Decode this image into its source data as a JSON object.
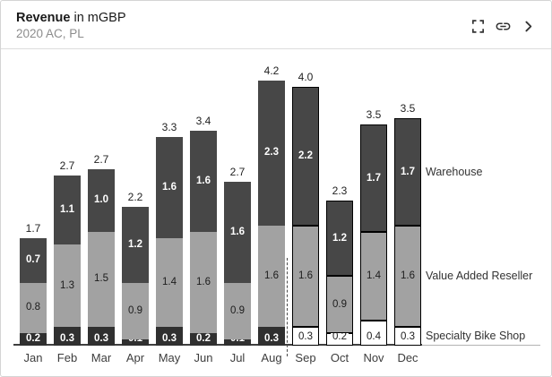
{
  "header": {
    "title_metric": "Revenue",
    "title_unit": "in mGBP",
    "subtitle": "2020 AC, PL",
    "icons": [
      "fullscreen-icon",
      "link-icon",
      "chevron-right-icon"
    ]
  },
  "chart_data": {
    "type": "bar",
    "variant": "stacked-column",
    "title": "Revenue in mGBP",
    "subtitle": "2020 AC, PL",
    "unit": "mGBP",
    "categories": [
      "Jan",
      "Feb",
      "Mar",
      "Apr",
      "May",
      "Jun",
      "Jul",
      "Aug",
      "Sep",
      "Oct",
      "Nov",
      "Dec"
    ],
    "scenario_by_month": [
      "AC",
      "AC",
      "AC",
      "AC",
      "AC",
      "AC",
      "AC",
      "AC",
      "PL",
      "PL",
      "PL",
      "PL"
    ],
    "separator_after": "Aug",
    "series": [
      {
        "name": "Specialty Bike Shop",
        "values": [
          0.2,
          0.3,
          0.3,
          0.1,
          0.3,
          0.2,
          0.1,
          0.3,
          0.3,
          0.2,
          0.4,
          0.3
        ]
      },
      {
        "name": "Value Added Reseller",
        "values": [
          0.8,
          1.3,
          1.5,
          0.9,
          1.4,
          1.6,
          0.9,
          1.6,
          1.6,
          0.9,
          1.4,
          1.6
        ]
      },
      {
        "name": "Warehouse",
        "values": [
          0.7,
          1.1,
          1.0,
          1.2,
          1.6,
          1.6,
          1.6,
          2.3,
          2.2,
          1.2,
          1.7,
          1.7
        ]
      }
    ],
    "totals": [
      "1.7",
      "2.7",
      "2.7",
      "2.2",
      "3.3",
      "3.4",
      "2.7",
      "4.2",
      "4.0",
      "2.3",
      "3.5",
      "3.5"
    ],
    "legend_position": "right",
    "grid": false,
    "ylim": [
      0,
      4.5
    ],
    "colors": {
      "warehouse": "#474747",
      "value_added_reseller": "#a2a2a2",
      "specialty_bike_shop": "#303030",
      "plan_fill": "#ffffff",
      "plan_border": "#000000"
    }
  }
}
